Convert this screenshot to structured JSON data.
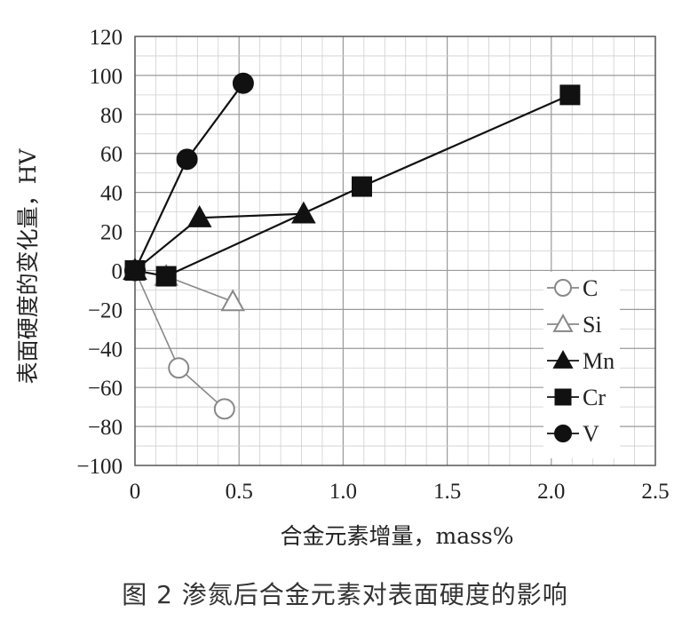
{
  "caption": "图 2   渗氮后合金元素对表面硬度的影响",
  "chart_data": {
    "type": "line",
    "xlabel": "合金元素增量，mass%",
    "ylabel": "表面硬度的变化量，HV",
    "xlim": [
      0,
      2.5
    ],
    "ylim": [
      -100,
      120
    ],
    "xticks": [
      "0",
      "0.5",
      "1.0",
      "1.5",
      "2.0",
      "2.5"
    ],
    "xtick_values": [
      0,
      0.5,
      1.0,
      1.5,
      2.0,
      2.5
    ],
    "yticks": [
      "120",
      "100",
      "80",
      "60",
      "40",
      "20",
      "0",
      "−20",
      "−40",
      "−60",
      "−80",
      "−100"
    ],
    "ytick_values": [
      120,
      100,
      80,
      60,
      40,
      20,
      0,
      -20,
      -40,
      -60,
      -80,
      -100
    ],
    "grid": true,
    "legend_position": "lower-right",
    "series": [
      {
        "name": "C",
        "marker": "circle-open",
        "color": "#888888",
        "x": [
          0,
          0.21,
          0.43
        ],
        "y": [
          0,
          -50,
          -71
        ]
      },
      {
        "name": "Si",
        "marker": "triangle-open",
        "color": "#888888",
        "x": [
          0,
          0.15,
          0.47
        ],
        "y": [
          0,
          -3,
          -16
        ]
      },
      {
        "name": "Mn",
        "marker": "triangle",
        "color": "#111111",
        "x": [
          0,
          0.31,
          0.81
        ],
        "y": [
          0,
          27,
          29
        ]
      },
      {
        "name": "Cr",
        "marker": "square",
        "color": "#111111",
        "x": [
          0,
          0.15,
          1.09,
          2.09
        ],
        "y": [
          0,
          -3,
          43,
          90
        ]
      },
      {
        "name": "V",
        "marker": "circle",
        "color": "#111111",
        "x": [
          0,
          0.25,
          0.52
        ],
        "y": [
          0,
          57,
          96
        ]
      }
    ]
  }
}
